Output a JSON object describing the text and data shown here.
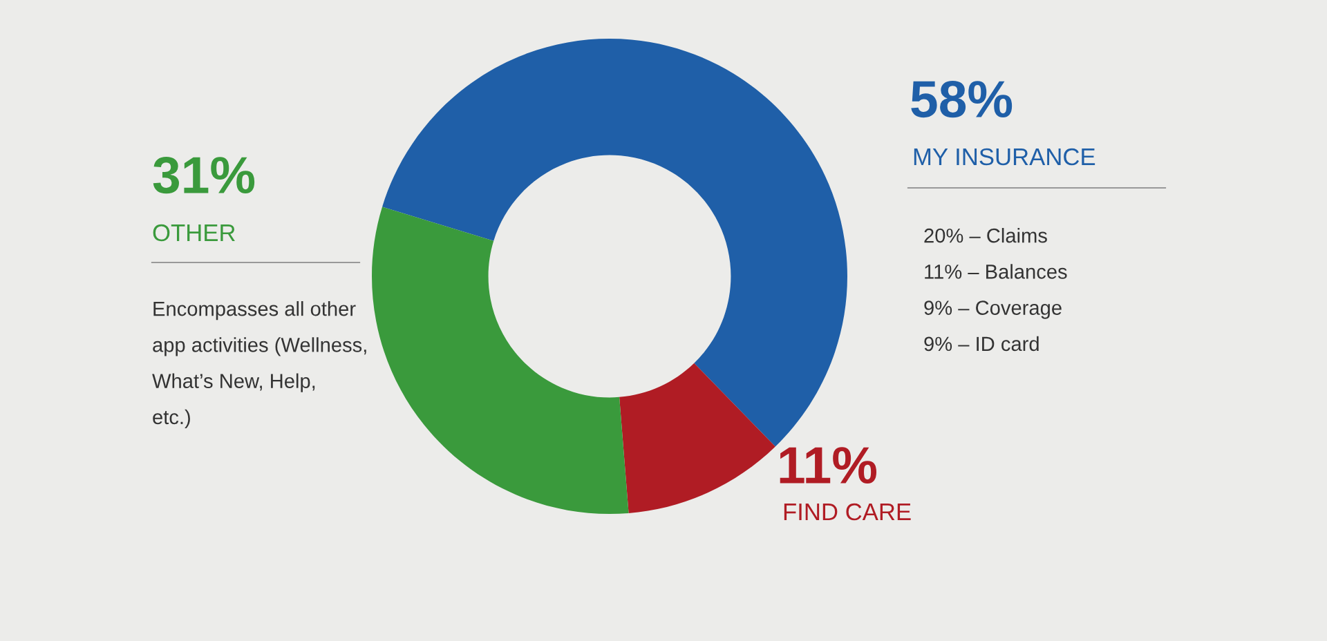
{
  "chart_data": {
    "type": "donut",
    "categories": [
      "MY INSURANCE",
      "FIND CARE",
      "OTHER"
    ],
    "values": [
      58,
      11,
      31
    ],
    "value_labels": [
      "58%",
      "11%",
      "31%"
    ],
    "colors": [
      "#1f5fa8",
      "#b01c24",
      "#3a9a3c"
    ],
    "annotations": [
      "20% – Claims\n\n11% – Balances\n\n9% – Coverage\n\n9% – ID card",
      "Encompasses all other\n\napp activities (Wellness,\n\nWhat’s New, Help,\n\netc.)"
    ]
  }
}
